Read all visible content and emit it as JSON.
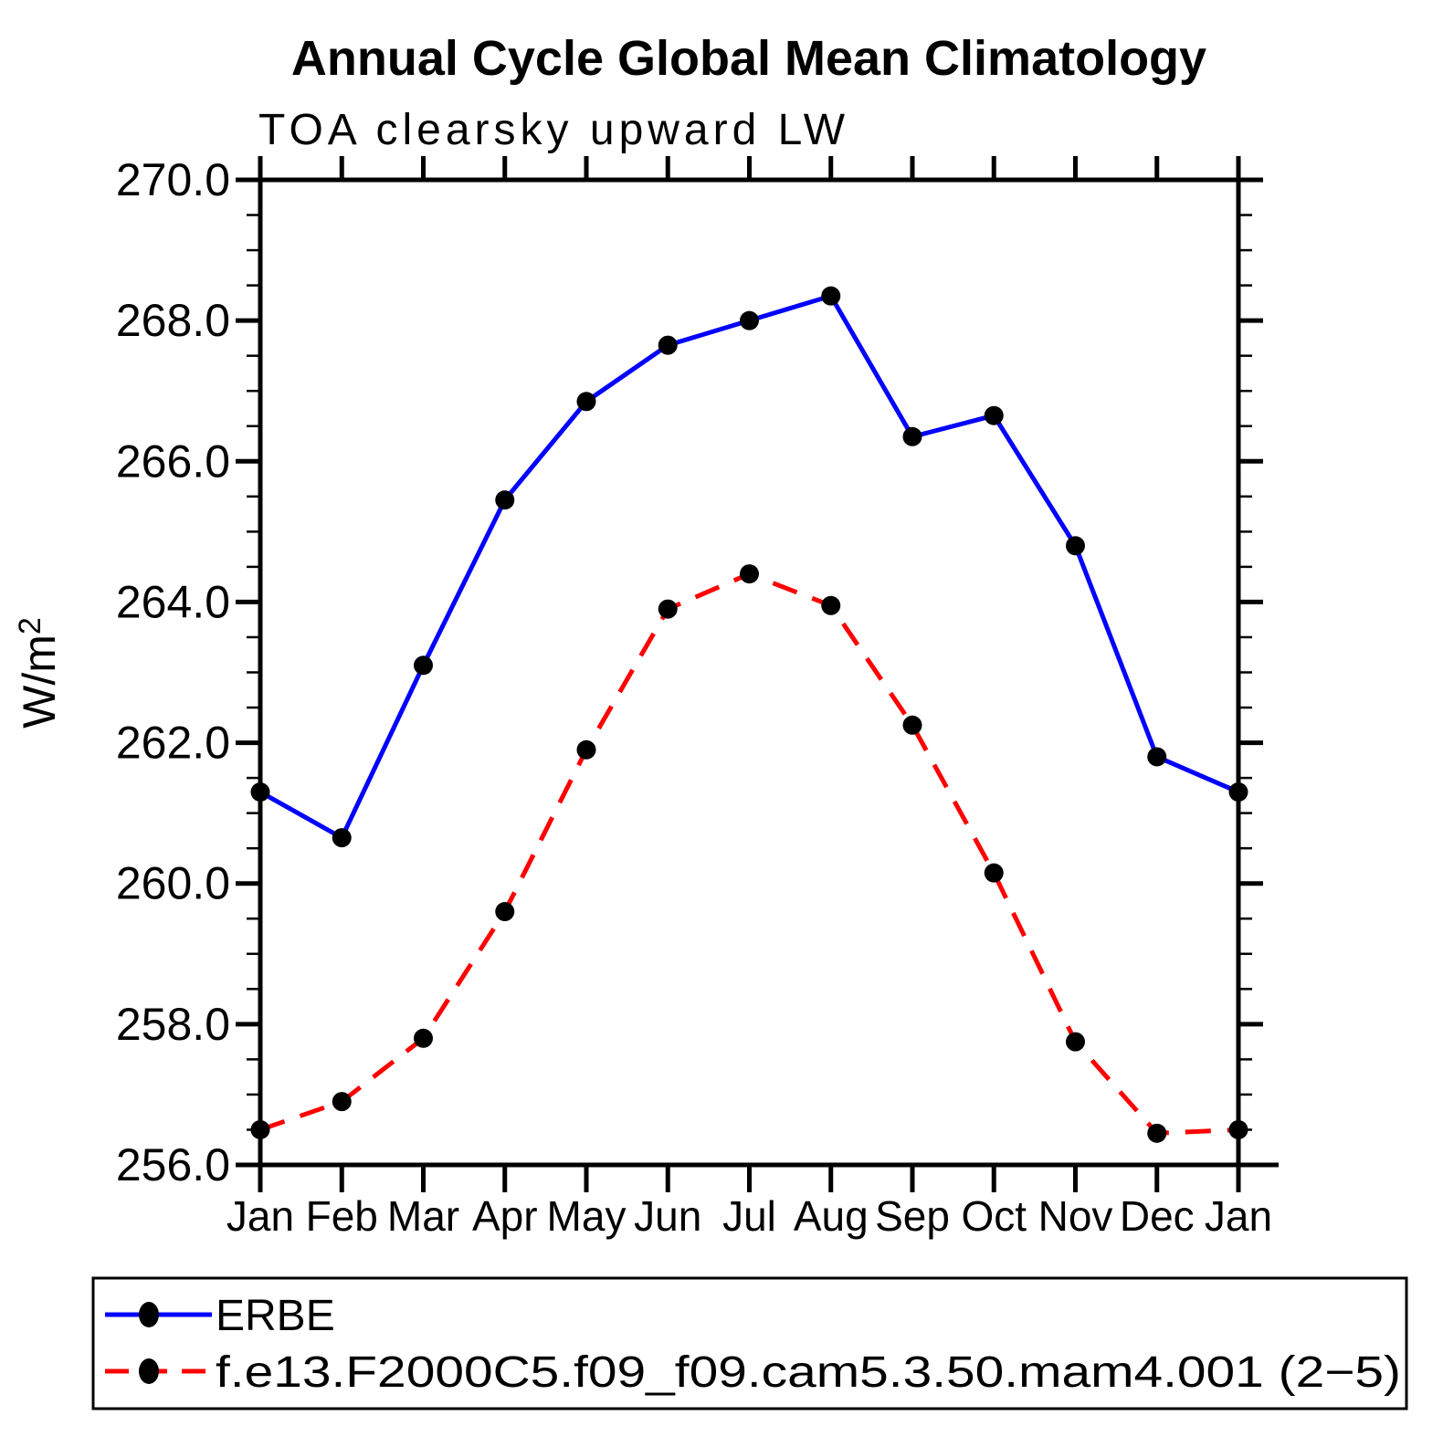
{
  "chart_data": {
    "type": "line",
    "title": "Annual Cycle Global Mean Climatology",
    "subtitle": "TOA clearsky upward LW",
    "ylabel": "W/m²",
    "ylabel_base": "W/m",
    "ylabel_exp": "2",
    "categories": [
      "Jan",
      "Feb",
      "Mar",
      "Apr",
      "May",
      "Jun",
      "Jul",
      "Aug",
      "Sep",
      "Oct",
      "Nov",
      "Dec",
      "Jan"
    ],
    "ylim": [
      256.0,
      270.0
    ],
    "y_major_step": 2.0,
    "y_minor_step": 0.5,
    "y_tick_labels": [
      "270.0",
      "268.0",
      "266.0",
      "264.0",
      "262.0",
      "260.0",
      "258.0",
      "256.0"
    ],
    "grid": false,
    "legend_position": "bottom",
    "colors": {
      "erbe_line": "#0000ff",
      "model_line": "#ff0000",
      "marker": "#000000",
      "axis": "#000000"
    },
    "series": [
      {
        "name": "ERBE",
        "color": "#0000ff",
        "line_style": "solid",
        "marker": "filled-circle",
        "values": [
          261.3,
          260.65,
          263.1,
          265.45,
          266.85,
          267.65,
          268.0,
          268.35,
          266.35,
          266.65,
          264.8,
          261.8,
          261.3
        ]
      },
      {
        "name": "f.e13.F2000C5.f09_f09.cam5.3.50.mam4.001 (2−5)",
        "color": "#ff0000",
        "line_style": "dashed",
        "marker": "filled-circle",
        "values": [
          256.5,
          256.9,
          257.8,
          259.6,
          261.9,
          263.9,
          264.4,
          263.95,
          262.25,
          260.15,
          257.75,
          256.45,
          256.5
        ]
      }
    ]
  }
}
